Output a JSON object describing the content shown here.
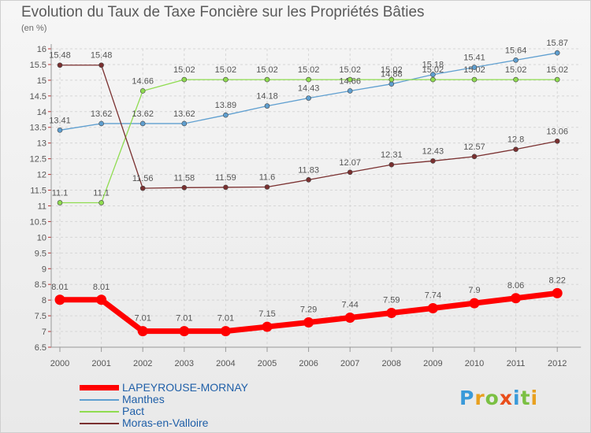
{
  "header": {
    "title": "Evolution du Taux de Taxe Foncière sur les Propriétés Bâties",
    "unit": "(en %)"
  },
  "colors": {
    "LAPEYROUSE-MORNAY": "#ff0000",
    "Manthes": "#5f9fd0",
    "Pact": "#8fdc50",
    "Moras-en-Valloire": "#7a3030"
  },
  "chart_data": {
    "type": "line",
    "title": "Evolution du Taux de Taxe Foncière sur les Propriétés Bâties",
    "ylabel": "(en %)",
    "xlabel": "",
    "categories": [
      "2000",
      "2001",
      "2002",
      "2003",
      "2004",
      "2005",
      "2006",
      "2007",
      "2008",
      "2009",
      "2010",
      "2011",
      "2012"
    ],
    "ylim": [
      6.5,
      16
    ],
    "ytick_step": 0.5,
    "grid": true,
    "legend_position": "bottom-left",
    "series": [
      {
        "name": "LAPEYROUSE-MORNAY",
        "values": [
          8.01,
          8.01,
          7.01,
          7.01,
          7.01,
          7.15,
          7.29,
          7.44,
          7.59,
          7.74,
          7.9,
          8.06,
          8.22
        ],
        "labels": [
          "8.01",
          "8.01",
          "7.01",
          "7.01",
          "7.01",
          "7.15",
          "7.29",
          "7.44",
          "7.59",
          "7.74",
          "7.9",
          "8.06",
          "8.22"
        ]
      },
      {
        "name": "Manthes",
        "values": [
          13.41,
          13.62,
          13.62,
          13.62,
          13.89,
          14.18,
          14.43,
          14.66,
          14.88,
          15.18,
          15.41,
          15.64,
          15.87
        ],
        "labels": [
          "13.41",
          "13.62",
          "13.62",
          "13.62",
          "13.89",
          "14.18",
          "14.43",
          "14.66",
          "14.88",
          "15.18",
          "15.41",
          "15.64",
          "15.87"
        ]
      },
      {
        "name": "Pact",
        "values": [
          11.1,
          11.1,
          14.66,
          15.02,
          15.02,
          15.02,
          15.02,
          15.02,
          15.02,
          15.02,
          15.02,
          15.02,
          15.02
        ],
        "labels": [
          "11.1",
          "11.1",
          "14.66",
          "15.02",
          "15.02",
          "15.02",
          "15.02",
          "15.02",
          "15.02",
          "15.02",
          "15.02",
          "15.02",
          "15.02"
        ]
      },
      {
        "name": "Moras-en-Valloire",
        "values": [
          15.48,
          15.48,
          11.56,
          11.58,
          11.59,
          11.6,
          11.83,
          12.07,
          12.31,
          12.43,
          12.57,
          12.8,
          13.06
        ],
        "labels": [
          "15.48",
          "15.48",
          "11.56",
          "11.58",
          "11.59",
          "11.6",
          "11.83",
          "12.07",
          "12.31",
          "12.43",
          "12.57",
          "12.8",
          "13.06"
        ]
      }
    ]
  },
  "legend": {
    "items": [
      {
        "label": "LAPEYROUSE-MORNAY"
      },
      {
        "label": "Manthes"
      },
      {
        "label": "Pact"
      },
      {
        "label": "Moras-en-Valloire"
      }
    ]
  },
  "logo": {
    "text": "Proxiti"
  }
}
